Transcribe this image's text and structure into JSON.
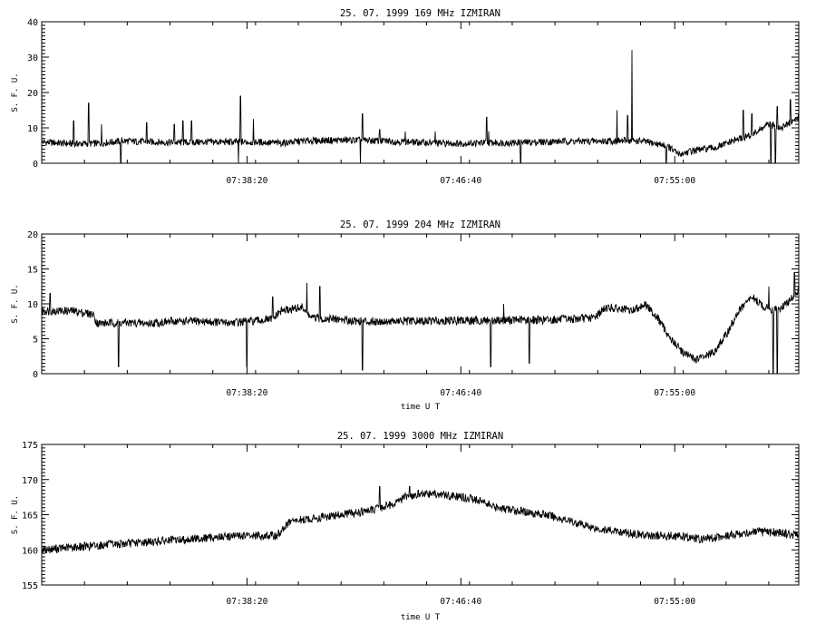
{
  "chart_data": [
    {
      "type": "line",
      "title": "25. 07. 1999   169 MHz   IZMIRAN",
      "ylabel": "S. F. U.",
      "xlabel": "",
      "xlim": [
        "07:30:20",
        "07:59:50"
      ],
      "ylim": [
        0,
        40
      ],
      "y_ticks": [
        "0",
        "10",
        "20",
        "30",
        "40"
      ],
      "x_ticks": [
        "07:38:20",
        "07:46:40",
        "07:55:00"
      ],
      "series": [
        {
          "values": [
            [
              "07:30:20",
              6
            ],
            [
              "07:31:30",
              5.5
            ],
            [
              "07:32:30",
              5.6
            ],
            [
              "07:33:30",
              6.3
            ],
            [
              "07:34:40",
              6
            ],
            [
              "07:35:40",
              5.8
            ],
            [
              "07:36:40",
              6
            ],
            [
              "07:37:40",
              6
            ],
            [
              "07:38:40",
              6
            ],
            [
              "07:39:40",
              5.7
            ],
            [
              "07:40:30",
              6.3
            ],
            [
              "07:41:40",
              6.5
            ],
            [
              "07:42:40",
              6.5
            ],
            [
              "07:43:40",
              6.3
            ],
            [
              "07:44:40",
              6
            ],
            [
              "07:45:40",
              5.7
            ],
            [
              "07:46:40",
              5.6
            ],
            [
              "07:47:40",
              5.8
            ],
            [
              "07:48:40",
              5.8
            ],
            [
              "07:49:40",
              6
            ],
            [
              "07:50:40",
              6.2
            ],
            [
              "07:51:40",
              6.2
            ],
            [
              "07:52:40",
              6.3
            ],
            [
              "07:53:40",
              6.3
            ],
            [
              "07:54:40",
              5
            ],
            [
              "07:55:10",
              2.5
            ],
            [
              "07:55:40",
              3.5
            ],
            [
              "07:56:40",
              4.5
            ],
            [
              "07:57:20",
              6.5
            ],
            [
              "07:58:00",
              8
            ],
            [
              "07:58:40",
              11
            ],
            [
              "07:59:10",
              10
            ],
            [
              "07:59:50",
              13
            ]
          ],
          "spikes": [
            [
              "07:31:35",
              12
            ],
            [
              "07:32:10",
              17
            ],
            [
              "07:32:40",
              11
            ],
            [
              "07:33:25",
              0
            ],
            [
              "07:34:25",
              11.5
            ],
            [
              "07:35:30",
              11
            ],
            [
              "07:35:50",
              12
            ],
            [
              "07:36:10",
              12
            ],
            [
              "07:38:05",
              19
            ],
            [
              "07:38:00",
              0
            ],
            [
              "07:38:35",
              12.5
            ],
            [
              "07:42:50",
              14
            ],
            [
              "07:42:45",
              0
            ],
            [
              "07:43:30",
              9.5
            ],
            [
              "07:44:30",
              9
            ],
            [
              "07:45:40",
              9
            ],
            [
              "07:47:40",
              13
            ],
            [
              "07:47:45",
              9
            ],
            [
              "07:49:00",
              0
            ],
            [
              "07:52:45",
              15
            ],
            [
              "07:53:10",
              13.5
            ],
            [
              "07:53:20",
              32
            ],
            [
              "07:54:40",
              0
            ],
            [
              "07:57:40",
              15
            ],
            [
              "07:58:00",
              14
            ],
            [
              "07:58:45",
              0
            ],
            [
              "07:58:55",
              0
            ],
            [
              "07:59:00",
              16
            ],
            [
              "07:59:30",
              18
            ]
          ]
        }
      ]
    },
    {
      "type": "line",
      "title": "25. 07. 1999   204 MHz   IZMIRAN",
      "ylabel": "S. F. U.",
      "xlabel": "time  U T",
      "xlim": [
        "07:30:20",
        "07:59:50"
      ],
      "ylim": [
        0,
        20
      ],
      "y_ticks": [
        "0",
        "5",
        "10",
        "15",
        "20"
      ],
      "x_ticks": [
        "07:38:20",
        "07:46:40",
        "07:55:00"
      ],
      "series": [
        {
          "values": [
            [
              "07:30:20",
              9
            ],
            [
              "07:31:30",
              9
            ],
            [
              "07:32:20",
              8.5
            ],
            [
              "07:32:30",
              7.2
            ],
            [
              "07:33:30",
              7.3
            ],
            [
              "07:34:30",
              7.2
            ],
            [
              "07:35:30",
              7.5
            ],
            [
              "07:36:30",
              7.5
            ],
            [
              "07:37:30",
              7.3
            ],
            [
              "07:38:30",
              7.5
            ],
            [
              "07:39:20",
              7.8
            ],
            [
              "07:39:40",
              9
            ],
            [
              "07:40:30",
              9.5
            ],
            [
              "07:40:50",
              8
            ],
            [
              "07:41:50",
              7.8
            ],
            [
              "07:42:50",
              7.5
            ],
            [
              "07:43:50",
              7.5
            ],
            [
              "07:44:50",
              7.5
            ],
            [
              "07:45:50",
              7.6
            ],
            [
              "07:46:50",
              7.6
            ],
            [
              "07:47:50",
              7.6
            ],
            [
              "07:48:50",
              7.7
            ],
            [
              "07:49:50",
              7.7
            ],
            [
              "07:50:50",
              7.8
            ],
            [
              "07:51:50",
              8
            ],
            [
              "07:52:20",
              9.5
            ],
            [
              "07:53:20",
              9
            ],
            [
              "07:53:50",
              10
            ],
            [
              "07:54:20",
              8
            ],
            [
              "07:54:50",
              5
            ],
            [
              "07:55:20",
              3
            ],
            [
              "07:55:50",
              2
            ],
            [
              "07:56:30",
              3
            ],
            [
              "07:57:00",
              5.5
            ],
            [
              "07:57:30",
              9
            ],
            [
              "07:58:00",
              11
            ],
            [
              "07:58:30",
              9.5
            ],
            [
              "07:59:00",
              9
            ],
            [
              "07:59:30",
              10.5
            ],
            [
              "07:59:50",
              12
            ]
          ],
          "spikes": [
            [
              "07:30:40",
              11.5
            ],
            [
              "07:33:20",
              1
            ],
            [
              "07:38:20",
              1
            ],
            [
              "07:39:20",
              11
            ],
            [
              "07:40:40",
              13
            ],
            [
              "07:41:10",
              12.5
            ],
            [
              "07:42:50",
              0.5
            ],
            [
              "07:47:50",
              1
            ],
            [
              "07:48:20",
              10
            ],
            [
              "07:49:20",
              1.5
            ],
            [
              "07:58:40",
              12.5
            ],
            [
              "07:58:50",
              0
            ],
            [
              "07:59:00",
              0
            ],
            [
              "07:59:40",
              14.5
            ]
          ]
        }
      ]
    },
    {
      "type": "line",
      "title": "25. 07. 1999   3000 MHz   IZMIRAN",
      "ylabel": "S. F. U.",
      "xlabel": "time  U T",
      "xlim": [
        "07:30:20",
        "07:59:50"
      ],
      "ylim": [
        155,
        175
      ],
      "y_ticks": [
        "155",
        "160",
        "165",
        "170",
        "175"
      ],
      "x_ticks": [
        "07:38:20",
        "07:46:40",
        "07:55:00"
      ],
      "series": [
        {
          "values": [
            [
              "07:30:20",
              160
            ],
            [
              "07:32:00",
              160.5
            ],
            [
              "07:34:00",
              161
            ],
            [
              "07:36:00",
              161.5
            ],
            [
              "07:38:00",
              162
            ],
            [
              "07:39:00",
              162
            ],
            [
              "07:39:30",
              162
            ],
            [
              "07:40:00",
              164
            ],
            [
              "07:41:00",
              164.5
            ],
            [
              "07:42:00",
              165
            ],
            [
              "07:43:00",
              165.5
            ],
            [
              "07:44:00",
              166.5
            ],
            [
              "07:44:30",
              167.5
            ],
            [
              "07:45:30",
              168
            ],
            [
              "07:46:40",
              167.5
            ],
            [
              "07:47:30",
              167
            ],
            [
              "07:48:00",
              166
            ],
            [
              "07:49:00",
              165.5
            ],
            [
              "07:50:00",
              165
            ],
            [
              "07:51:00",
              164
            ],
            [
              "07:52:00",
              163
            ],
            [
              "07:53:00",
              162.5
            ],
            [
              "07:54:00",
              162
            ],
            [
              "07:55:00",
              162
            ],
            [
              "07:56:00",
              161.5
            ],
            [
              "07:57:00",
              162
            ],
            [
              "07:58:00",
              162.5
            ],
            [
              "07:59:00",
              162.5
            ],
            [
              "07:59:50",
              162
            ]
          ],
          "spikes": [
            [
              "07:43:30",
              169
            ],
            [
              "07:44:40",
              169
            ],
            [
              "07:45:00",
              168.5
            ]
          ]
        }
      ]
    }
  ]
}
